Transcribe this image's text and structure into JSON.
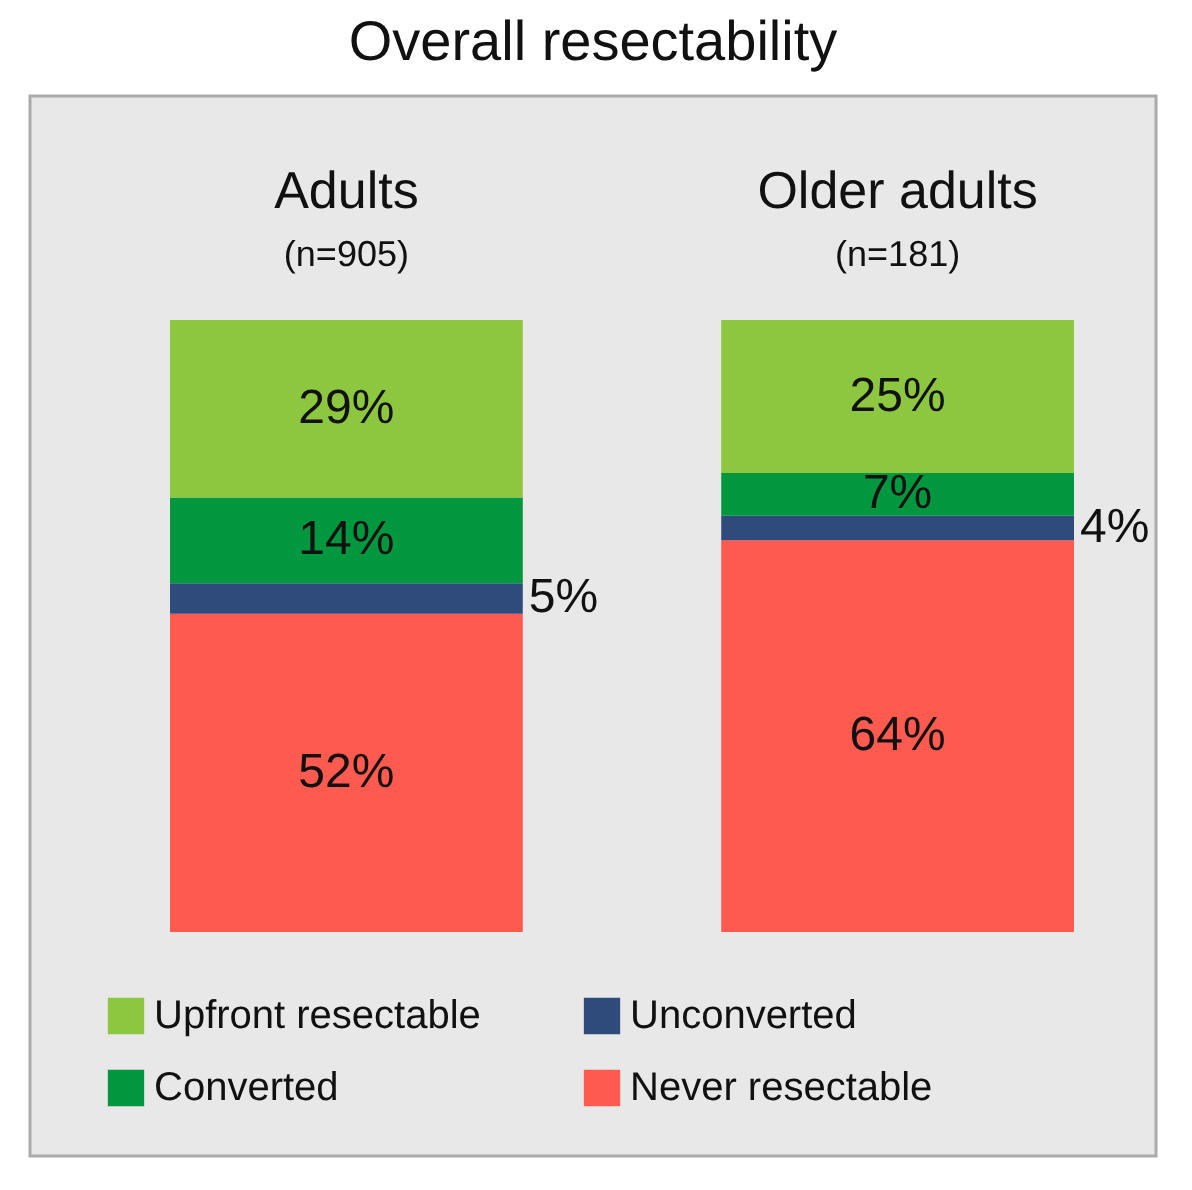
{
  "chart_data": {
    "type": "bar",
    "title": "Overall resectability",
    "categories": [
      "Adults\n(n=905)",
      "Older adults\n(n=181)"
    ],
    "stacked": true,
    "ylim": [
      0,
      100
    ],
    "tick_labels": false,
    "legend": "bottom",
    "series": [
      {
        "name": "Never resectable",
        "color": "#ff5a4f",
        "values": [
          52,
          64
        ],
        "value_labels": [
          "52%",
          "64%"
        ]
      },
      {
        "name": "Unconverted",
        "color": "#2f4b7c",
        "values": [
          5,
          4
        ],
        "value_labels": [
          "5%",
          "4%"
        ]
      },
      {
        "name": "Converted",
        "color": "#00973f",
        "values": [
          14,
          7
        ],
        "value_labels": [
          "14%",
          "7%"
        ]
      },
      {
        "name": "Upfront resectable",
        "color": "#8dc63f",
        "values": [
          29,
          25
        ],
        "value_labels": [
          "29%",
          "25%"
        ]
      }
    ]
  }
}
